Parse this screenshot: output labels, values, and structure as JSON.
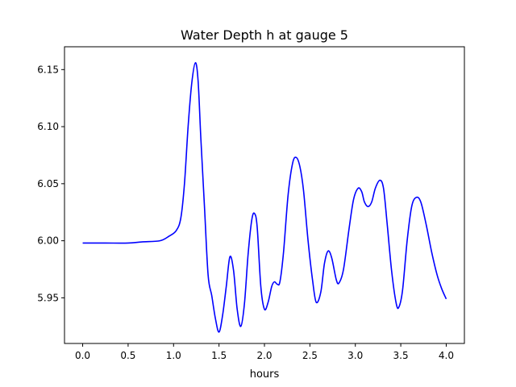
{
  "chart_data": {
    "type": "line",
    "title": "Water Depth h at gauge 5",
    "xlabel": "hours",
    "ylabel": "",
    "xlim": [
      -0.2,
      4.2
    ],
    "ylim": [
      5.91,
      6.17
    ],
    "grid": false,
    "xticks": [
      0.0,
      0.5,
      1.0,
      1.5,
      2.0,
      2.5,
      3.0,
      3.5,
      4.0
    ],
    "xtick_labels": [
      "0.0",
      "0.5",
      "1.0",
      "1.5",
      "2.0",
      "2.5",
      "3.0",
      "3.5",
      "4.0"
    ],
    "yticks": [
      5.95,
      6.0,
      6.05,
      6.1,
      6.15
    ],
    "ytick_labels": [
      "5.95",
      "6.00",
      "6.05",
      "6.10",
      "6.15"
    ],
    "series": [
      {
        "color": "#0000ff",
        "points": [
          [
            0.0,
            5.998
          ],
          [
            0.25,
            5.998
          ],
          [
            0.5,
            5.998
          ],
          [
            0.65,
            5.999
          ],
          [
            0.85,
            6.0
          ],
          [
            0.95,
            6.004
          ],
          [
            1.03,
            6.009
          ],
          [
            1.08,
            6.02
          ],
          [
            1.12,
            6.05
          ],
          [
            1.16,
            6.1
          ],
          [
            1.2,
            6.138
          ],
          [
            1.24,
            6.156
          ],
          [
            1.27,
            6.14
          ],
          [
            1.3,
            6.09
          ],
          [
            1.34,
            6.03
          ],
          [
            1.38,
            5.97
          ],
          [
            1.42,
            5.952
          ],
          [
            1.46,
            5.932
          ],
          [
            1.5,
            5.92
          ],
          [
            1.54,
            5.935
          ],
          [
            1.58,
            5.96
          ],
          [
            1.62,
            5.986
          ],
          [
            1.66,
            5.974
          ],
          [
            1.7,
            5.94
          ],
          [
            1.74,
            5.925
          ],
          [
            1.78,
            5.945
          ],
          [
            1.82,
            5.988
          ],
          [
            1.86,
            6.018
          ],
          [
            1.89,
            6.024
          ],
          [
            1.92,
            6.012
          ],
          [
            1.96,
            5.96
          ],
          [
            2.0,
            5.94
          ],
          [
            2.04,
            5.946
          ],
          [
            2.08,
            5.96
          ],
          [
            2.11,
            5.964
          ],
          [
            2.14,
            5.962
          ],
          [
            2.17,
            5.964
          ],
          [
            2.21,
            5.99
          ],
          [
            2.26,
            6.04
          ],
          [
            2.31,
            6.068
          ],
          [
            2.35,
            6.073
          ],
          [
            2.39,
            6.065
          ],
          [
            2.43,
            6.044
          ],
          [
            2.48,
            6.0
          ],
          [
            2.53,
            5.965
          ],
          [
            2.57,
            5.946
          ],
          [
            2.62,
            5.955
          ],
          [
            2.66,
            5.98
          ],
          [
            2.7,
            5.991
          ],
          [
            2.74,
            5.985
          ],
          [
            2.79,
            5.966
          ],
          [
            2.82,
            5.963
          ],
          [
            2.87,
            5.975
          ],
          [
            2.93,
            6.01
          ],
          [
            2.98,
            6.036
          ],
          [
            3.03,
            6.046
          ],
          [
            3.07,
            6.043
          ],
          [
            3.1,
            6.034
          ],
          [
            3.14,
            6.03
          ],
          [
            3.18,
            6.034
          ],
          [
            3.22,
            6.046
          ],
          [
            3.27,
            6.053
          ],
          [
            3.31,
            6.046
          ],
          [
            3.35,
            6.015
          ],
          [
            3.4,
            5.973
          ],
          [
            3.45,
            5.945
          ],
          [
            3.48,
            5.942
          ],
          [
            3.52,
            5.957
          ],
          [
            3.57,
            6.0
          ],
          [
            3.62,
            6.03
          ],
          [
            3.67,
            6.038
          ],
          [
            3.72,
            6.034
          ],
          [
            3.78,
            6.014
          ],
          [
            3.84,
            5.99
          ],
          [
            3.9,
            5.97
          ],
          [
            3.95,
            5.958
          ],
          [
            4.0,
            5.949
          ]
        ]
      }
    ]
  }
}
